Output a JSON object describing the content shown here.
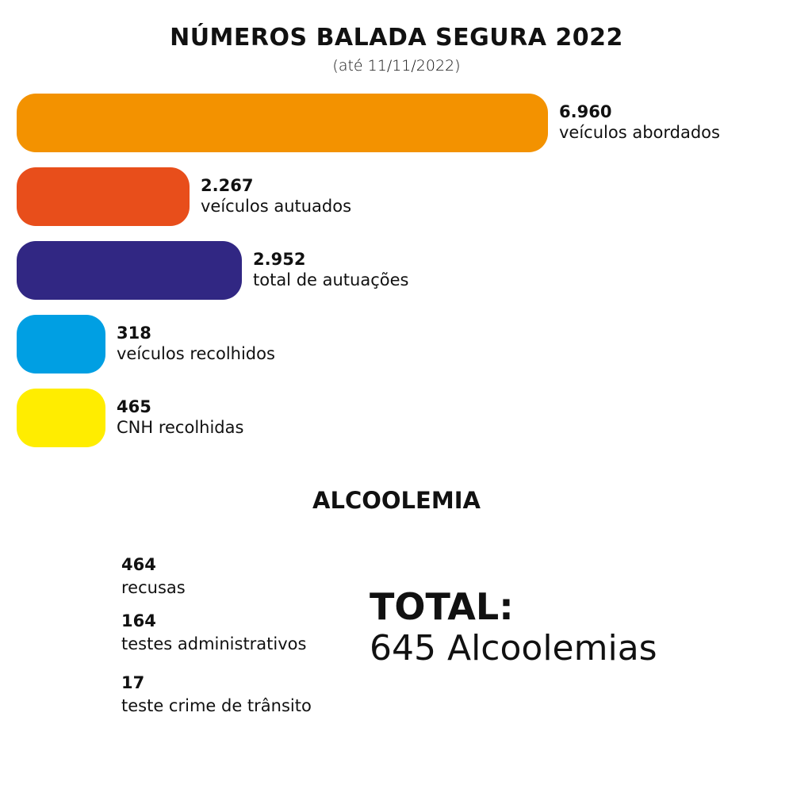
{
  "title": "NÚMEROS BALADA SEGURA 2022",
  "subtitle": "(até 11/11/2022)",
  "chart_data": {
    "type": "bar",
    "orientation": "horizontal",
    "title": "NÚMEROS BALADA SEGURA 2022",
    "subtitle": "(até 11/11/2022)",
    "categories": [
      "veículos abordados",
      "veículos autuados",
      "total de autuações",
      "veículos recolhidos",
      "CNH recolhidas"
    ],
    "values": [
      6960,
      2267,
      2952,
      318,
      465
    ],
    "value_labels": [
      "6.960",
      "2.267",
      "2.952",
      "318",
      "465"
    ],
    "colors": [
      "#f39200",
      "#e84e1b",
      "#312783",
      "#009fe3",
      "#ffed00"
    ],
    "grid": false,
    "legend": "none"
  },
  "alcoolemia": {
    "title": "ALCOOLEMIA",
    "items": [
      {
        "value": "464",
        "label": "recusas"
      },
      {
        "value": "164",
        "label": "testes administrativos"
      },
      {
        "value": "17",
        "label": "teste crime de trânsito"
      }
    ],
    "total_heading": "TOTAL:",
    "total_text": "645 Alcoolemias"
  }
}
